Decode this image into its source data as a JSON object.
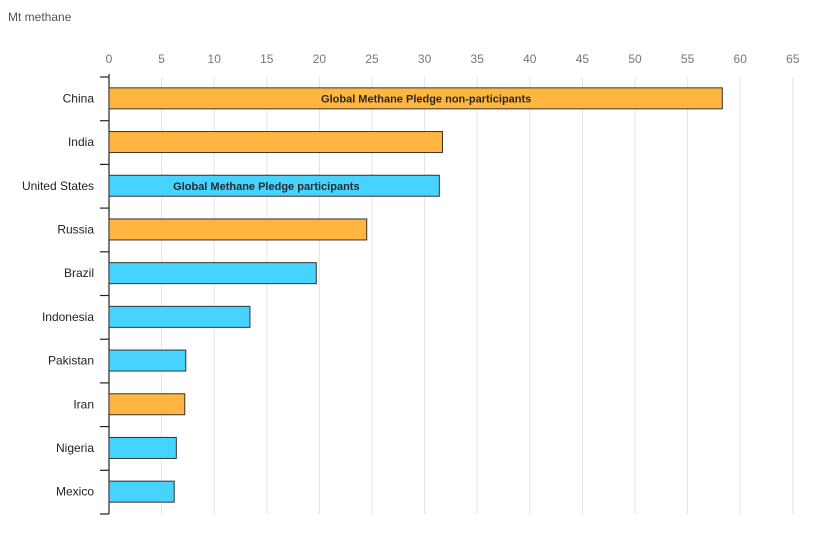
{
  "chart_data": {
    "type": "bar",
    "orientation": "horizontal",
    "title": "",
    "xlabel": "",
    "ylabel": "Mt methane",
    "xlim": [
      0,
      65
    ],
    "xticks": [
      0,
      5,
      10,
      15,
      20,
      25,
      30,
      35,
      40,
      45,
      50,
      55,
      60,
      65
    ],
    "grid": true,
    "categories": [
      "China",
      "India",
      "United States",
      "Russia",
      "Brazil",
      "Indonesia",
      "Pakistan",
      "Iran",
      "Nigeria",
      "Mexico"
    ],
    "values": [
      58.3,
      31.7,
      31.4,
      24.5,
      19.7,
      13.4,
      7.3,
      7.2,
      6.4,
      6.2
    ],
    "groups": [
      "non",
      "non",
      "par",
      "non",
      "par",
      "par",
      "par",
      "non",
      "par",
      "par"
    ],
    "series": [
      {
        "key": "non",
        "name": "Global Methane Pledge non-participants",
        "color": "#FFB53F",
        "label_on": "China"
      },
      {
        "key": "par",
        "name": "Global Methane Pledge participants",
        "color": "#47D3FF",
        "label_on": "United States"
      }
    ]
  }
}
